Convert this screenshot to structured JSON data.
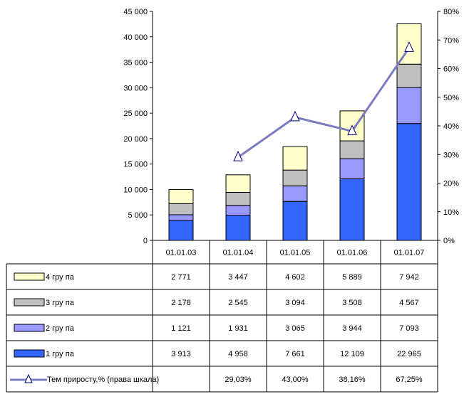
{
  "chart_data": {
    "type": "bar",
    "stacked": true,
    "categories": [
      "01.01.03",
      "01.01.04",
      "01.01.05",
      "01.01.06",
      "01.01.07"
    ],
    "ylim": [
      0,
      45000
    ],
    "y_ticks": [
      "0",
      "5 000",
      "10 000",
      "15 000",
      "20 000",
      "25 000",
      "30 000",
      "35 000",
      "40 000",
      "45 000"
    ],
    "y2lim": [
      0,
      80
    ],
    "y2_ticks": [
      "0%",
      "10%",
      "20%",
      "30%",
      "40%",
      "50%",
      "60%",
      "70%",
      "80%"
    ],
    "series": [
      {
        "name": "1 гру па",
        "color": "#3366ff",
        "values": [
          3913,
          4958,
          7661,
          12109,
          22965
        ],
        "labels": [
          "3 913",
          "4 958",
          "7 661",
          "12 109",
          "22 965"
        ]
      },
      {
        "name": "2 гру па",
        "color": "#9999ff",
        "values": [
          1121,
          1931,
          3065,
          3944,
          7093
        ],
        "labels": [
          "1 121",
          "1 931",
          "3 065",
          "3 944",
          "7 093"
        ]
      },
      {
        "name": "3 гру па",
        "color": "#c0c0c0",
        "values": [
          2178,
          2545,
          3094,
          3508,
          4567
        ],
        "labels": [
          "2 178",
          "2 545",
          "3 094",
          "3 508",
          "4 567"
        ]
      },
      {
        "name": "4 гру па",
        "color": "#ffffcc",
        "values": [
          2771,
          3447,
          4602,
          5889,
          7942
        ],
        "labels": [
          "2 771",
          "3 447",
          "4 602",
          "5 889",
          "7 942"
        ]
      }
    ],
    "line_series": {
      "name": "Тем приросту,% (права шкала)",
      "color": "#7b7bc0",
      "axis": "right",
      "values": [
        null,
        29.03,
        43.0,
        38.16,
        67.25
      ],
      "labels": [
        "",
        "29,03%",
        "43,00%",
        "38,16%",
        "67,25%"
      ]
    },
    "table_row_order": [
      3,
      2,
      1,
      0
    ]
  }
}
